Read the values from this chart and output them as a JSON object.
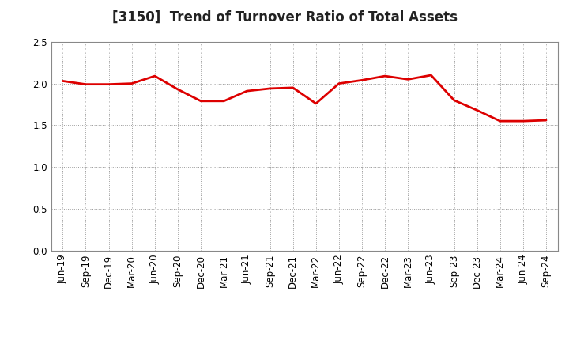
{
  "title": "[3150]  Trend of Turnover Ratio of Total Assets",
  "x_labels": [
    "Jun-19",
    "Sep-19",
    "Dec-19",
    "Mar-20",
    "Jun-20",
    "Sep-20",
    "Dec-20",
    "Mar-21",
    "Jun-21",
    "Sep-21",
    "Dec-21",
    "Mar-22",
    "Jun-22",
    "Sep-22",
    "Dec-22",
    "Mar-23",
    "Jun-23",
    "Sep-23",
    "Dec-23",
    "Mar-24",
    "Jun-24",
    "Sep-24"
  ],
  "y_values": [
    2.03,
    1.99,
    1.99,
    2.0,
    2.09,
    1.93,
    1.79,
    1.79,
    1.91,
    1.94,
    1.95,
    1.76,
    2.0,
    2.04,
    2.09,
    2.05,
    2.1,
    1.8,
    1.68,
    1.55,
    1.55,
    1.56
  ],
  "line_color": "#dd0000",
  "line_width": 2.0,
  "ylim": [
    0.0,
    2.5
  ],
  "yticks": [
    0.0,
    0.5,
    1.0,
    1.5,
    2.0,
    2.5
  ],
  "background_color": "#ffffff",
  "grid_color": "#999999",
  "title_fontsize": 12,
  "tick_fontsize": 8.5,
  "plot_bg_color": "#ffffff"
}
